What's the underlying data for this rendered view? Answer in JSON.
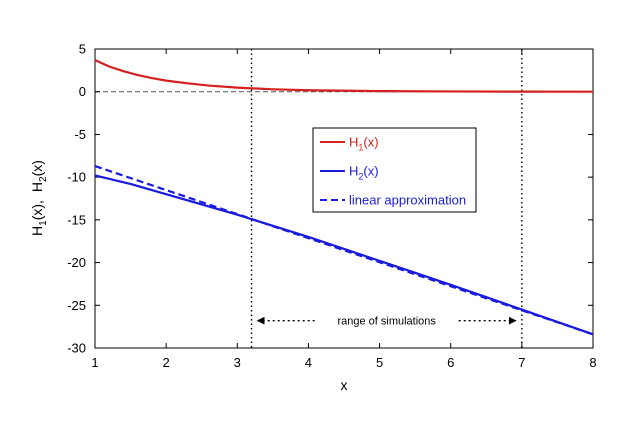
{
  "chart_data": {
    "type": "line",
    "xlabel": "x",
    "ylabel_parts": {
      "h": "H",
      "sub1": "1",
      "sub2": "2",
      "arg": "(x),",
      "arg2": "(x)"
    },
    "xlim": [
      1,
      8
    ],
    "ylim": [
      -30,
      5
    ],
    "x_ticks": [
      1,
      2,
      3,
      4,
      5,
      6,
      7,
      8
    ],
    "y_ticks": [
      5,
      0,
      -5,
      -10,
      -15,
      -20,
      -25,
      -30
    ],
    "zero_line": {
      "y": 0,
      "style": "dashed",
      "color": "#555555"
    },
    "vlines": [
      {
        "x": 3.2,
        "style": "dotted",
        "color": "#000000"
      },
      {
        "x": 7.0,
        "style": "dotted",
        "color": "#000000"
      }
    ],
    "annotation": {
      "text": "range of simulations",
      "x_from": 3.2,
      "x_to": 7.0,
      "y": -26.8
    },
    "series": [
      {
        "name": "H1(x)",
        "legend": {
          "base": "H",
          "sub": "1",
          "tail": "(x)"
        },
        "color": "#d42020",
        "dash": "solid",
        "x": [
          1.0,
          1.2,
          1.4,
          1.6,
          1.8,
          2.0,
          2.3,
          2.6,
          3.0,
          3.5,
          4.0,
          5.0,
          6.0,
          7.0,
          8.0
        ],
        "y": [
          3.7,
          2.95,
          2.4,
          1.95,
          1.6,
          1.3,
          0.98,
          0.72,
          0.48,
          0.28,
          0.17,
          0.07,
          0.03,
          0.01,
          0.0
        ]
      },
      {
        "name": "H2(x)",
        "legend": {
          "base": "H",
          "sub": "2",
          "tail": "(x)"
        },
        "color": "#1a1adf",
        "dash": "solid",
        "x": [
          1.0,
          1.5,
          2.0,
          2.5,
          3.0,
          3.5,
          4.0,
          5.0,
          6.0,
          7.0,
          8.0
        ],
        "y": [
          -9.8,
          -10.8,
          -12.0,
          -13.2,
          -14.4,
          -15.7,
          -17.0,
          -19.8,
          -22.6,
          -25.5,
          -28.4
        ]
      },
      {
        "name": "linear approximation",
        "legend": {
          "base": "linear approximation",
          "sub": "",
          "tail": ""
        },
        "color": "#1a1adf",
        "dash": "dashed",
        "x": [
          1.0,
          8.0
        ],
        "y": [
          -8.7,
          -28.4
        ]
      }
    ],
    "legend_position": "center-right",
    "grid": false
  }
}
